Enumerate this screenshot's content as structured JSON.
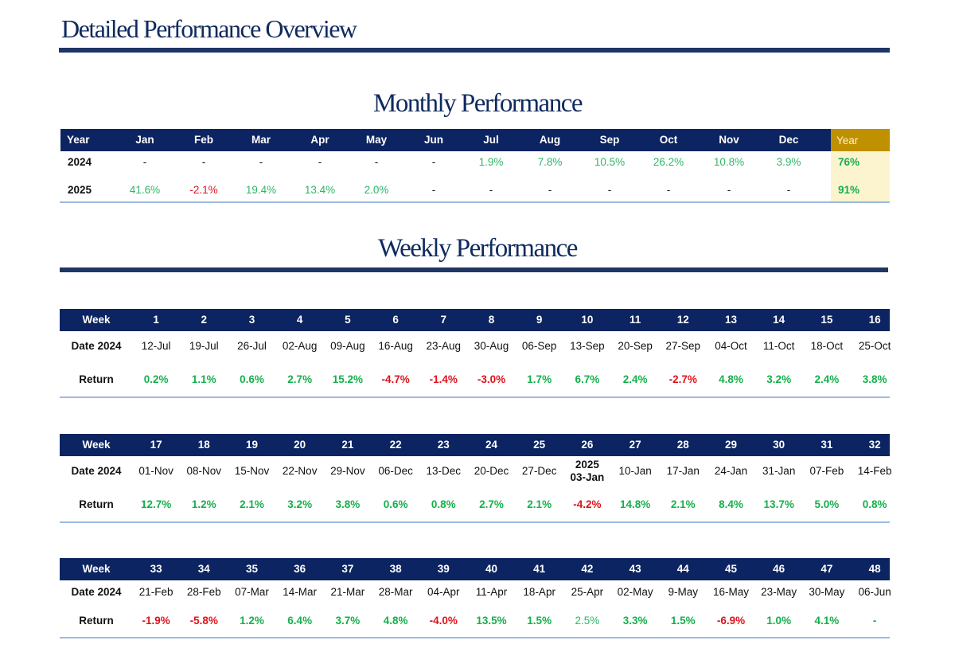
{
  "doc_title": "Detailed Performance Overview",
  "monthly": {
    "title": "Monthly Performance",
    "header": [
      "Year",
      "Jan",
      "Feb",
      "Mar",
      "Apr",
      "May",
      "Jun",
      "Jul",
      "Aug",
      "Sep",
      "Oct",
      "Nov",
      "Dec",
      "Year"
    ],
    "rows": [
      {
        "year": "2024",
        "values": [
          "-",
          "-",
          "-",
          "-",
          "-",
          "-",
          "1.9%",
          "7.8%",
          "10.5%",
          "26.2%",
          "10.8%",
          "3.9%"
        ],
        "total": "76%"
      },
      {
        "year": "2025",
        "values": [
          "41.6%",
          "-2.1%",
          "19.4%",
          "13.4%",
          "2.0%",
          "-",
          "-",
          "-",
          "-",
          "-",
          "-",
          "-"
        ],
        "total": "91%"
      }
    ]
  },
  "weekly": {
    "title": "Weekly Performance",
    "labels": {
      "week": "Week",
      "date": "Date 2024",
      "return": "Return"
    },
    "blocks": [
      {
        "weeks": [
          "1",
          "2",
          "3",
          "4",
          "5",
          "6",
          "7",
          "8",
          "9",
          "10",
          "11",
          "12",
          "13",
          "14",
          "15",
          "16"
        ],
        "dates": [
          "12-Jul",
          "19-Jul",
          "26-Jul",
          "02-Aug",
          "09-Aug",
          "16-Aug",
          "23-Aug",
          "30-Aug",
          "06-Sep",
          "13-Sep",
          "20-Sep",
          "27-Sep",
          "04-Oct",
          "11-Oct",
          "18-Oct",
          "25-Oct"
        ],
        "returns": [
          "0.2%",
          "1.1%",
          "0.6%",
          "2.7%",
          "15.2%",
          "-4.7%",
          "-1.4%",
          "-3.0%",
          "1.7%",
          "6.7%",
          "2.4%",
          "-2.7%",
          "4.8%",
          "3.2%",
          "2.4%",
          "3.8%"
        ]
      },
      {
        "weeks": [
          "17",
          "18",
          "19",
          "20",
          "21",
          "22",
          "23",
          "24",
          "25",
          "26",
          "27",
          "28",
          "29",
          "30",
          "31",
          "32"
        ],
        "dates": [
          "01-Nov",
          "08-Nov",
          "15-Nov",
          "22-Nov",
          "29-Nov",
          "06-Dec",
          "13-Dec",
          "20-Dec",
          "27-Dec",
          "03-Jan",
          "10-Jan",
          "17-Jan",
          "24-Jan",
          "31-Jan",
          "07-Feb",
          "14-Feb"
        ],
        "year_marker": "2025",
        "returns": [
          "12.7%",
          "1.2%",
          "2.1%",
          "3.2%",
          "3.8%",
          "0.6%",
          "0.8%",
          "2.7%",
          "2.1%",
          "-4.2%",
          "14.8%",
          "2.1%",
          "8.4%",
          "13.7%",
          "5.0%",
          "0.8%"
        ]
      },
      {
        "weeks": [
          "33",
          "34",
          "35",
          "36",
          "37",
          "38",
          "39",
          "40",
          "41",
          "42",
          "43",
          "44",
          "45",
          "46",
          "47",
          "48"
        ],
        "dates": [
          "21-Feb",
          "28-Feb",
          "07-Mar",
          "14-Mar",
          "21-Mar",
          "28-Mar",
          "04-Apr",
          "11-Apr",
          "18-Apr",
          "25-Apr",
          "02-May",
          "9-May",
          "16-May",
          "23-May",
          "30-May",
          "06-Jun"
        ],
        "returns": [
          "-1.9%",
          "-5.8%",
          "1.2%",
          "6.4%",
          "3.7%",
          "4.8%",
          "-4.0%",
          "13.5%",
          "1.5%",
          "2.5%",
          "3.3%",
          "1.5%",
          "-6.9%",
          "1.0%",
          "4.1%",
          "-"
        ]
      }
    ]
  },
  "colors": {
    "navy": "#0c2461",
    "positive": "#15b04b",
    "negative": "#e0121b",
    "year_header": "#bf9000",
    "year_fill": "#fcf3cf"
  }
}
